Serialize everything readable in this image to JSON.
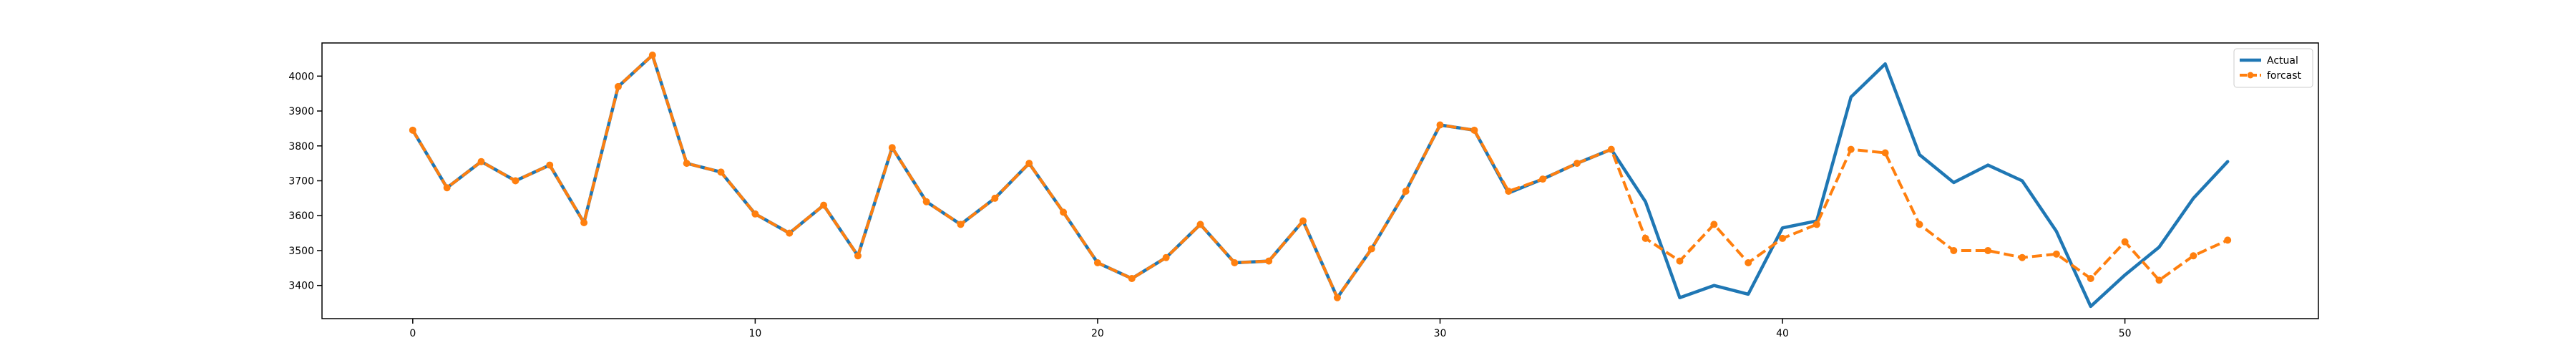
{
  "chart_data": {
    "type": "line",
    "title": "",
    "xlabel": "",
    "ylabel": "",
    "xlim": [
      -2.65,
      55.65
    ],
    "ylim": [
      3305,
      4095
    ],
    "xticks": [
      0,
      10,
      20,
      30,
      40,
      50
    ],
    "xtick_labels": [
      "0",
      "10",
      "20",
      "30",
      "40",
      "50"
    ],
    "yticks": [
      3400,
      3500,
      3600,
      3700,
      3800,
      3900,
      4000
    ],
    "ytick_labels": [
      "3400",
      "3500",
      "3600",
      "3700",
      "3800",
      "3900",
      "4000"
    ],
    "grid": false,
    "legend_position": "top-right",
    "x": [
      0,
      1,
      2,
      3,
      4,
      5,
      6,
      7,
      8,
      9,
      10,
      11,
      12,
      13,
      14,
      15,
      16,
      17,
      18,
      19,
      20,
      21,
      22,
      23,
      24,
      25,
      26,
      27,
      28,
      29,
      30,
      31,
      32,
      33,
      34,
      35,
      36,
      37,
      38,
      39,
      40,
      41,
      42,
      43,
      44,
      45,
      46,
      47,
      48,
      49,
      50,
      51,
      52,
      53
    ],
    "series": [
      {
        "name": "Actual",
        "color": "#1f77b4",
        "style": "solid",
        "marker": "none",
        "values": [
          3845,
          3680,
          3755,
          3700,
          3745,
          3580,
          3970,
          4060,
          3750,
          3725,
          3605,
          3550,
          3630,
          3485,
          3795,
          3640,
          3575,
          3650,
          3750,
          3610,
          3465,
          3420,
          3480,
          3575,
          3465,
          3470,
          3585,
          3365,
          3505,
          3670,
          3860,
          3845,
          3665,
          3705,
          3750,
          3790,
          3640,
          3365,
          3400,
          3375,
          3565,
          3585,
          3940,
          4035,
          3775,
          3695,
          3745,
          3700,
          3555,
          3340,
          3430,
          3510,
          3650,
          3755
        ]
      },
      {
        "name": "forcast",
        "color": "#ff7f0e",
        "style": "dashed",
        "marker": "circle",
        "values": [
          3845,
          3680,
          3755,
          3700,
          3745,
          3580,
          3970,
          4060,
          3750,
          3725,
          3605,
          3550,
          3630,
          3485,
          3795,
          3640,
          3575,
          3650,
          3750,
          3610,
          3465,
          3420,
          3480,
          3575,
          3465,
          3470,
          3585,
          3365,
          3505,
          3670,
          3860,
          3845,
          3670,
          3705,
          3750,
          3790,
          3535,
          3470,
          3575,
          3465,
          3535,
          3575,
          3790,
          3780,
          3575,
          3500,
          3500,
          3480,
          3490,
          3420,
          3525,
          3415,
          3485,
          3530
        ]
      }
    ]
  }
}
